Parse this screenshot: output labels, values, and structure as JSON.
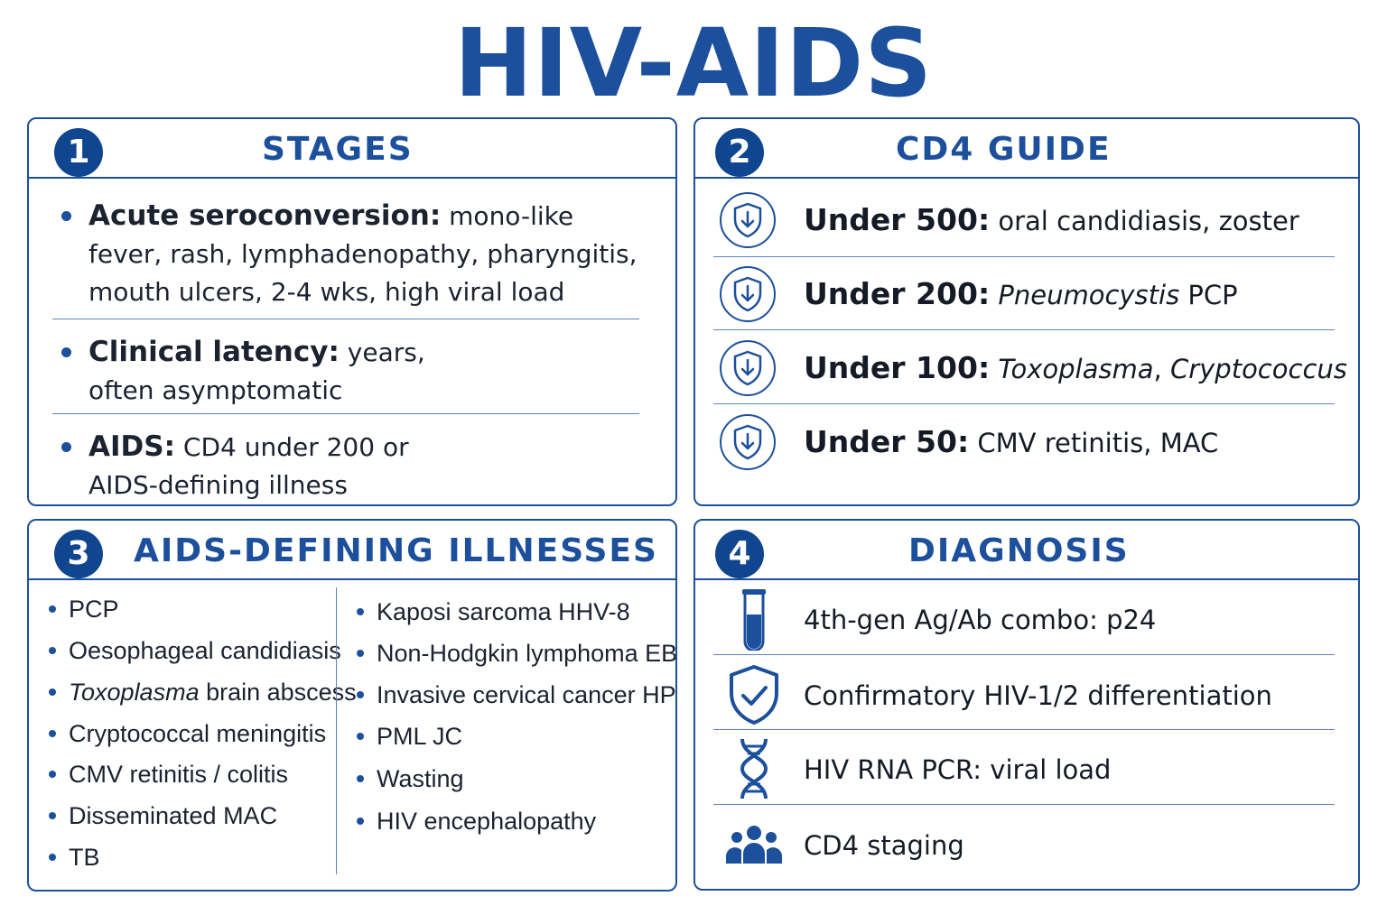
{
  "title": "HIV-AIDS",
  "colors": {
    "accent": "#1c4f9c",
    "badge": "#10458f",
    "divider": "#5d84c0"
  },
  "stages": {
    "number": "1",
    "title": "STAGES",
    "items": [
      {
        "term": "Acute seroconversion:",
        "detail": "mono-like fever, rash, lymphadenopathy, pharyngitis, mouth ulcers, 2-4 wks, high viral load"
      },
      {
        "term": "Clinical latency:",
        "detail": "years, often asymptomatic"
      },
      {
        "term": "AIDS:",
        "detail": "CD4 under 200 or AIDS-defining illness"
      }
    ]
  },
  "cd4": {
    "number": "2",
    "title": "CD4 GUIDE",
    "icon": "shield-down-arrow-icon",
    "rows": [
      {
        "threshold": "Under 500:",
        "detail": "oral candidiasis, zoster"
      },
      {
        "threshold": "Under 200:",
        "detail_italic": "Pneumocystis",
        "detail_rest": " PCP"
      },
      {
        "threshold": "Under 100:",
        "detail_italic": "Toxoplasma",
        "detail_mid": ", ",
        "detail_italic2": "Cryptococcus"
      },
      {
        "threshold": "Under 50:",
        "detail": "CMV retinitis, MAC"
      }
    ]
  },
  "illnesses": {
    "number": "3",
    "title": "AIDS-DEFINING ILLNESSES",
    "left": [
      "PCP",
      "Oesophageal candidiasis",
      {
        "italic": "Toxoplasma",
        "rest": " brain abscess"
      },
      "Cryptococcal meningitis",
      "CMV retinitis / colitis",
      "Disseminated MAC",
      "TB"
    ],
    "right": [
      "Kaposi sarcoma HHV-8",
      "Non-Hodgkin lymphoma EBV",
      "Invasive cervical cancer HPV",
      "PML JC",
      "Wasting",
      "HIV encephalopathy"
    ]
  },
  "diagnosis": {
    "number": "4",
    "title": "DIAGNOSIS",
    "rows": [
      {
        "icon": "test-tube-icon",
        "text": "4th-gen Ag/Ab combo: p24"
      },
      {
        "icon": "shield-check-icon",
        "text": "Confirmatory HIV-1/2 differentiation"
      },
      {
        "icon": "dna-icon",
        "text": "HIV RNA PCR: viral load"
      },
      {
        "icon": "people-group-icon",
        "text": "CD4 staging"
      }
    ]
  }
}
